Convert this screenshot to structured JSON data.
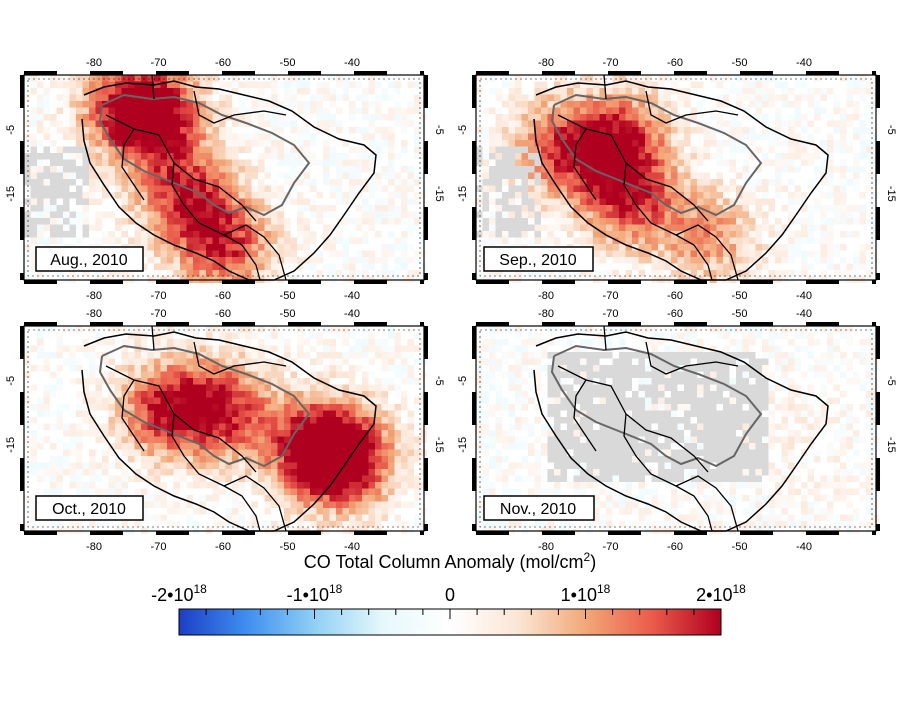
{
  "figure": {
    "panels": [
      {
        "label": "Aug., 2010",
        "intensity": 0.95
      },
      {
        "label": "Sep., 2010",
        "intensity": 0.9
      },
      {
        "label": "Oct., 2010",
        "intensity": 1.0
      },
      {
        "label": "Nov., 2010",
        "intensity": 0.25
      }
    ],
    "lon_ticks": [
      "-80",
      "-70",
      "-60",
      "-50",
      "-40"
    ],
    "lat_ticks": [
      "-5",
      "-15"
    ],
    "colorbar": {
      "title_main": "CO Total Column Anomaly (mol/cm",
      "title_sup": "2",
      "title_end": ")",
      "labels": [
        {
          "base": "-2•10",
          "exp": "18"
        },
        {
          "base": "-1•10",
          "exp": "18"
        },
        {
          "base": "0",
          "exp": ""
        },
        {
          "base": "1•10",
          "exp": "18"
        },
        {
          "base": "2•10",
          "exp": "18"
        }
      ],
      "colors": [
        "#1c3fc6",
        "#3f8ef0",
        "#8fd0f5",
        "#e6f8fc",
        "#ffffff",
        "#fbe6d6",
        "#f2a878",
        "#ea5a4a",
        "#b0001f"
      ]
    },
    "colors": {
      "no_data": "#d9d9d9",
      "country_border": "#000000",
      "amazon_outline": "#666666"
    }
  },
  "chart_data": {
    "type": "heatmap",
    "title": "",
    "colorbar_label": "CO Total Column Anomaly (mol/cm2)",
    "colorbar_range": [
      -2e+18,
      2e+18
    ],
    "colorbar_ticks": [
      -2e+18,
      -1e+18,
      0,
      1e+18,
      2e+18
    ],
    "lon_ticks": [
      -80,
      -70,
      -60,
      -50,
      -40
    ],
    "lat_ticks": [
      -5,
      -15
    ],
    "panels": [
      "Aug., 2010",
      "Sep., 2010",
      "Oct., 2010",
      "Nov., 2010"
    ]
  }
}
